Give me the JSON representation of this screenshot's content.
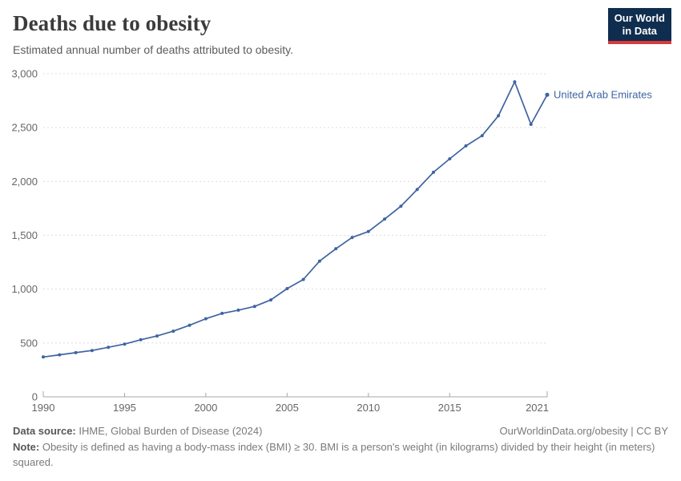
{
  "header": {
    "title": "Deaths due to obesity",
    "subtitle": "Estimated annual number of deaths attributed to obesity.",
    "logo": {
      "line1": "Our World",
      "line2": "in Data"
    }
  },
  "chart_data": {
    "type": "line",
    "title": "Deaths due to obesity",
    "entity_label": "United Arab Emirates",
    "color": "#3e64a0",
    "grid": "horizontal-dashed",
    "legend_position": "end-of-line",
    "xlim": [
      1990,
      2021
    ],
    "ylim": [
      0,
      3000
    ],
    "x_ticks": [
      1990,
      1995,
      2000,
      2005,
      2010,
      2015,
      2021
    ],
    "y_ticks": [
      0,
      500,
      1000,
      1500,
      2000,
      2500,
      3000
    ],
    "x": [
      1990,
      1991,
      1992,
      1993,
      1994,
      1995,
      1996,
      1997,
      1998,
      1999,
      2000,
      2001,
      2002,
      2003,
      2004,
      2005,
      2006,
      2007,
      2008,
      2009,
      2010,
      2011,
      2012,
      2013,
      2014,
      2015,
      2016,
      2017,
      2018,
      2019,
      2020,
      2021
    ],
    "values": [
      370,
      390,
      410,
      430,
      460,
      490,
      530,
      565,
      610,
      665,
      725,
      775,
      805,
      840,
      900,
      1005,
      1090,
      1260,
      1375,
      1480,
      1535,
      1650,
      1770,
      1925,
      2085,
      2210,
      2330,
      2425,
      2610,
      2925,
      2530,
      2805
    ]
  },
  "footer": {
    "source_label": "Data source:",
    "source_text": " IHME, Global Burden of Disease (2024)",
    "attribution": "OurWorldinData.org/obesity | CC BY",
    "note_label": "Note:",
    "note_text": " Obesity is defined as having a body-mass index (BMI) ≥ 30. BMI is a person's weight (in kilograms) divided by their height (in meters) squared."
  }
}
